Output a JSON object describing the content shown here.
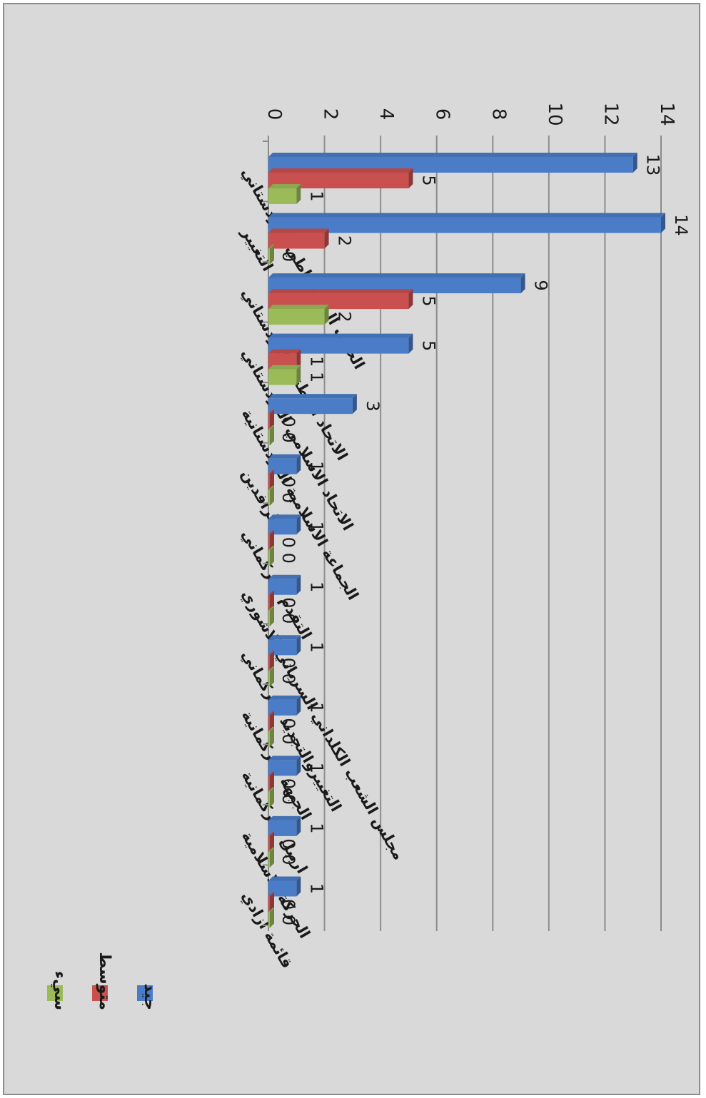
{
  "chart_data": {
    "type": "bar",
    "orientation": "rotated-90-clockwise",
    "title": "",
    "xlabel": "",
    "ylabel": "",
    "ylim": [
      0,
      14
    ],
    "yticks": [
      0,
      2,
      4,
      6,
      8,
      10,
      12,
      14
    ],
    "grid": true,
    "legend_position": "bottom-left",
    "categories": [
      "الحزب الديمقراطي الكردستاني",
      "حركة التغيير",
      "الاتحاد الوطني الكردستاني",
      "الاتحاد الاسلامي الكردستاني",
      "الجماعة الاسلامية الكردستانية",
      "الرافدين",
      "التقدم التركماني",
      "مجلس الشعب الكلداني السرياني الاشوري",
      "التغييروالتجديد التركماني",
      "الجبهة التركمانية",
      "اربيل التركمانية",
      "الحركة الاسلامية",
      "قائمة آزادي"
    ],
    "series": [
      {
        "name": "جيد",
        "color": "#4a7cc7",
        "values": [
          13,
          14,
          9,
          5,
          3,
          1,
          1,
          1,
          1,
          1,
          1,
          1,
          1
        ]
      },
      {
        "name": "متوسط",
        "color": "#c9504e",
        "values": [
          5,
          2,
          5,
          1,
          0,
          0,
          0,
          0,
          0,
          0,
          0,
          0,
          0
        ]
      },
      {
        "name": "سيء",
        "color": "#9bbb59",
        "values": [
          1,
          0,
          2,
          1,
          0,
          0,
          0,
          0,
          0,
          0,
          0,
          0,
          0
        ]
      }
    ]
  }
}
